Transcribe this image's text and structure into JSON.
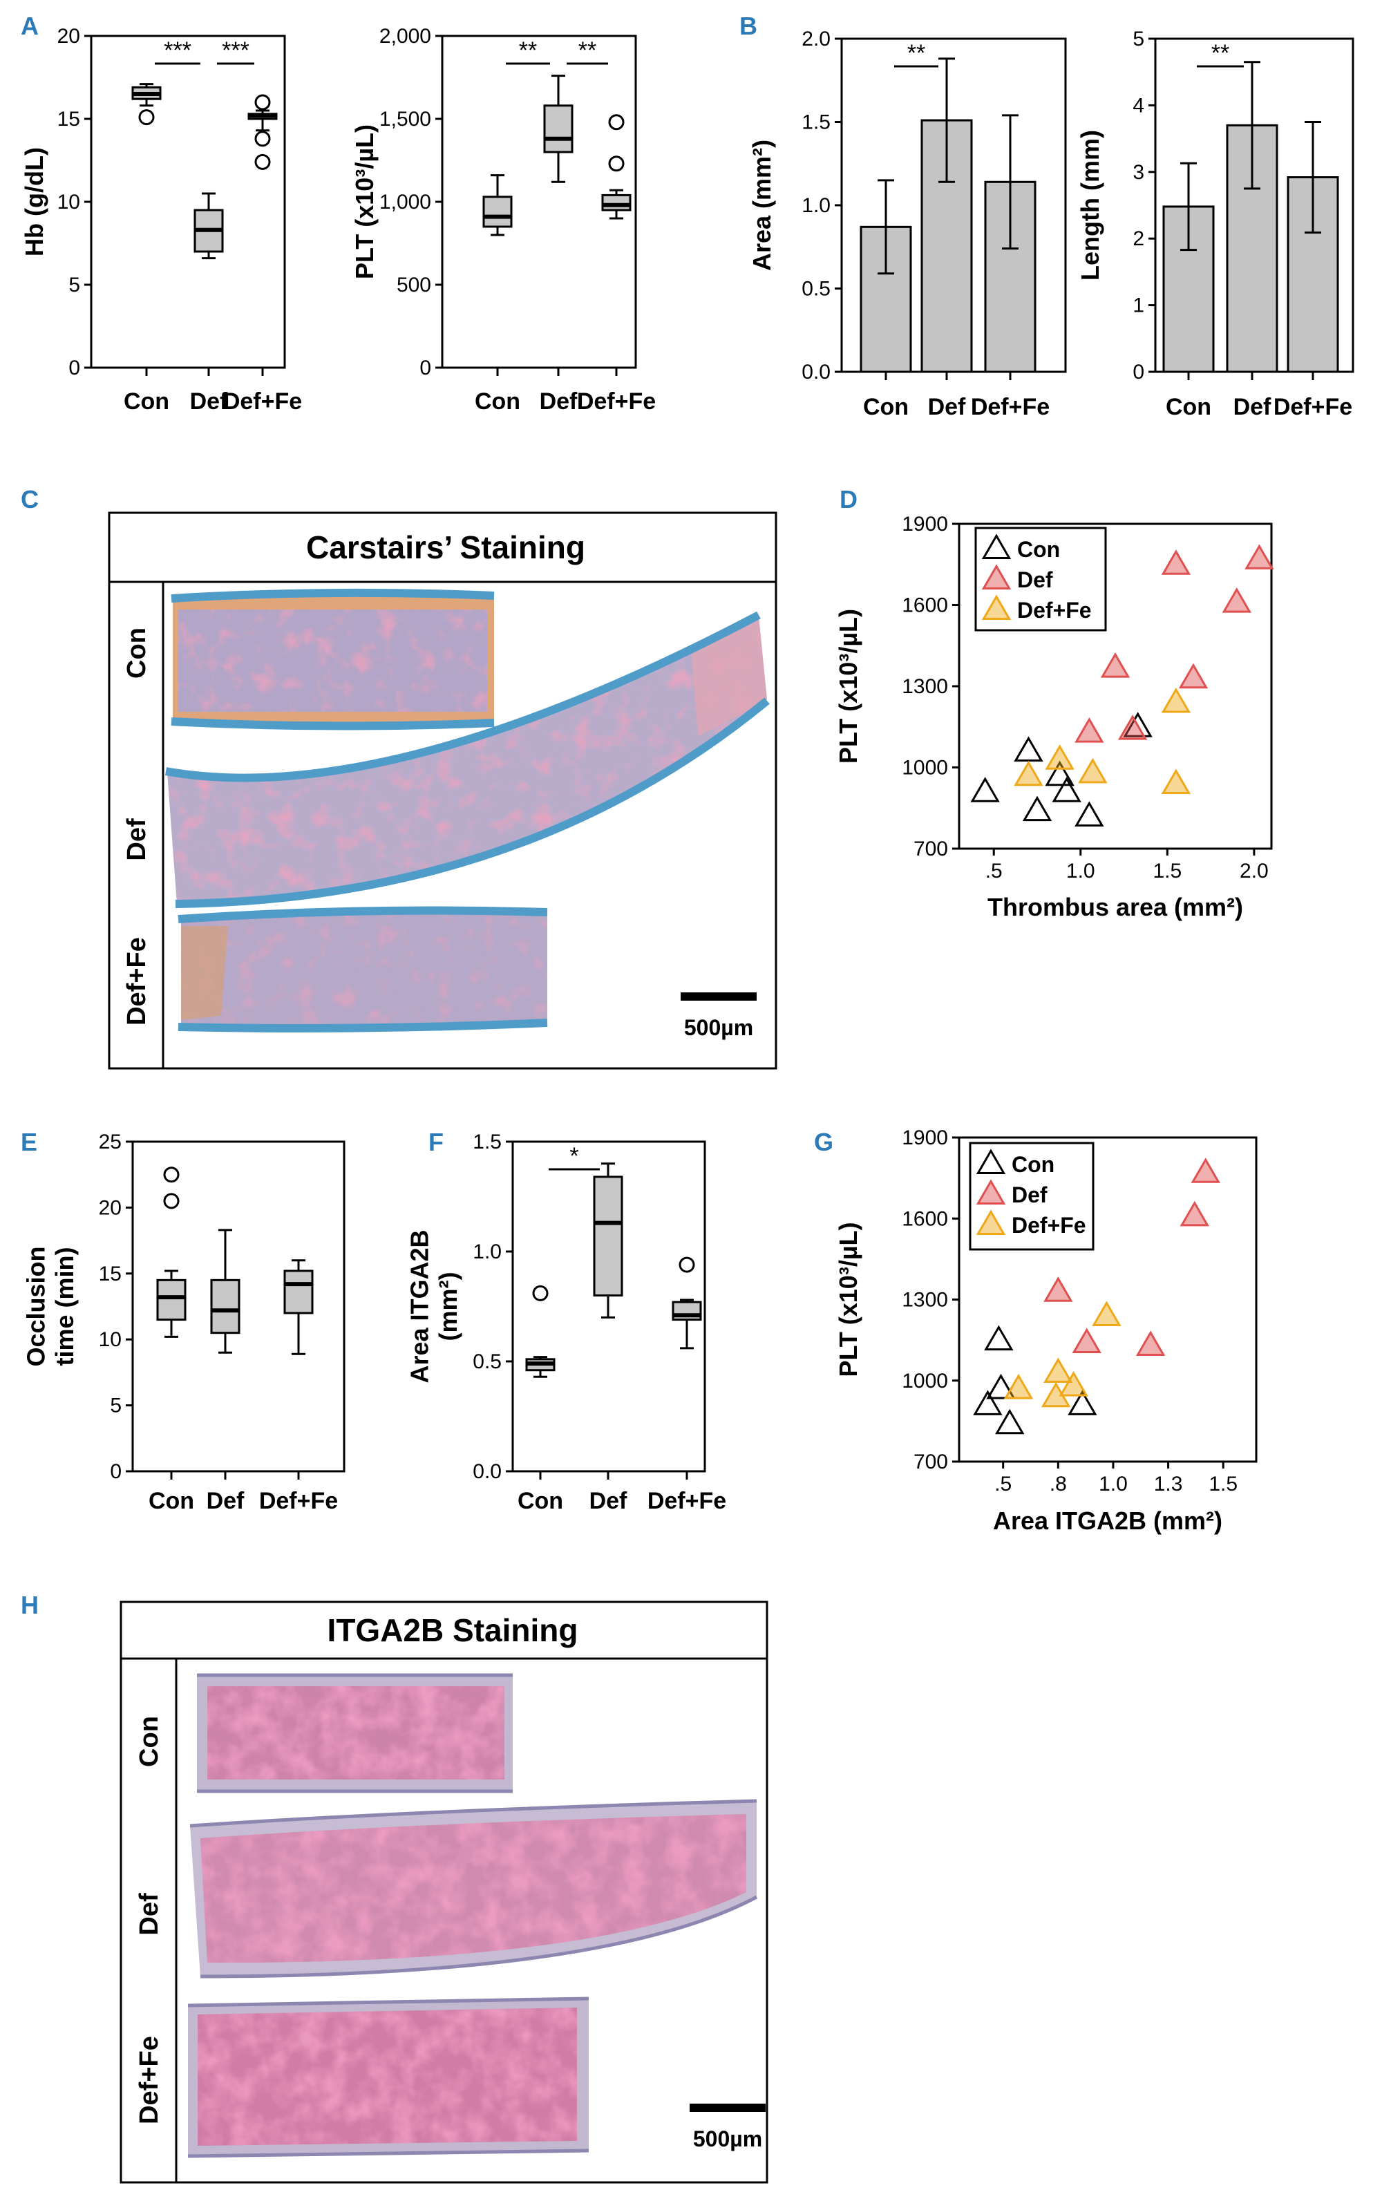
{
  "colors": {
    "panel_label": "#2b7bb9",
    "box_fill": "#c8c8c8",
    "bar_fill": "#c4c4c4",
    "con": "#000000",
    "def": "#e05050",
    "def_fe": "#f0a818",
    "carstairs_blue": "#4f9cc9",
    "carstairs_tissue": "#b7a9c9",
    "carstairs_red": "#d45e84",
    "itga_pink": "#d9578c",
    "itga_bg": "#c2b8d0"
  },
  "panel_labels": [
    "A",
    "B",
    "C",
    "D",
    "E",
    "F",
    "G",
    "H"
  ],
  "chart_data": [
    {
      "id": "A1",
      "type": "box",
      "ylabel": "Hb (g/dL)",
      "categories": [
        "Con",
        "Def",
        "Def+Fe"
      ],
      "yticks": [
        "0",
        "5",
        "10",
        "15",
        "20"
      ],
      "ylim": [
        0,
        20
      ],
      "boxes": [
        {
          "min": 15.8,
          "q1": 16.2,
          "median": 16.5,
          "q3": 16.9,
          "max": 17.1,
          "outliers": [
            15.1
          ]
        },
        {
          "min": 6.6,
          "q1": 7.0,
          "median": 8.3,
          "q3": 9.5,
          "max": 10.5,
          "outliers": []
        },
        {
          "min": 14.3,
          "q1": 15.0,
          "median": 15.2,
          "q3": 15.3,
          "max": 15.5,
          "outliers": [
            16.0,
            13.8,
            12.4
          ]
        }
      ],
      "brackets": [
        {
          "from": 0,
          "to": 1,
          "label": "***"
        },
        {
          "from": 1,
          "to": 2,
          "label": "***"
        }
      ]
    },
    {
      "id": "A2",
      "type": "box",
      "ylabel": "PLT (x10³/µL)",
      "categories": [
        "Con",
        "Def",
        "Def+Fe"
      ],
      "yticks": [
        "0",
        "500",
        "1,000",
        "1,500",
        "2,000"
      ],
      "ylim": [
        0,
        2000
      ],
      "boxes": [
        {
          "min": 800,
          "q1": 850,
          "median": 910,
          "q3": 1030,
          "max": 1160,
          "outliers": []
        },
        {
          "min": 1120,
          "q1": 1300,
          "median": 1380,
          "q3": 1580,
          "max": 1760,
          "outliers": []
        },
        {
          "min": 900,
          "q1": 950,
          "median": 980,
          "q3": 1040,
          "max": 1070,
          "outliers": [
            1480,
            1230
          ]
        }
      ],
      "brackets": [
        {
          "from": 0,
          "to": 1,
          "label": "**"
        },
        {
          "from": 1,
          "to": 2,
          "label": "**"
        }
      ]
    },
    {
      "id": "B1",
      "type": "bar",
      "ylabel": "Area (mm²)",
      "categories": [
        "Con",
        "Def",
        "Def+Fe"
      ],
      "yticks": [
        "0.0",
        "0.5",
        "1.0",
        "1.5",
        "2.0"
      ],
      "ylim": [
        0,
        2.0
      ],
      "values": [
        0.87,
        1.51,
        1.14
      ],
      "errors": [
        0.28,
        0.37,
        0.4
      ],
      "brackets": [
        {
          "from": 0,
          "to": 1,
          "label": "**"
        }
      ]
    },
    {
      "id": "B2",
      "type": "bar",
      "ylabel": "Length (mm)",
      "categories": [
        "Con",
        "Def",
        "Def+Fe"
      ],
      "yticks": [
        "0",
        "1",
        "2",
        "3",
        "4",
        "5"
      ],
      "ylim": [
        0,
        5
      ],
      "values": [
        2.48,
        3.7,
        2.92
      ],
      "errors": [
        0.65,
        0.95,
        0.83
      ],
      "brackets": [
        {
          "from": 0,
          "to": 1,
          "label": "**"
        }
      ]
    },
    {
      "id": "D",
      "type": "scatter",
      "xlabel": "Thrombus area (mm²)",
      "ylabel": "PLT (x10³/µL)",
      "xticks": [
        ".5",
        "1.0",
        "1.5",
        "2.0"
      ],
      "xtick_values": [
        0.5,
        1.0,
        1.5,
        2.0
      ],
      "xlim": [
        0.3,
        2.1
      ],
      "yticks": [
        "700",
        "1000",
        "1300",
        "1600",
        "1900"
      ],
      "ylim": [
        700,
        1900
      ],
      "legend": [
        "Con",
        "Def",
        "Def+Fe"
      ],
      "series": [
        {
          "name": "Con",
          "x": [
            0.45,
            0.75,
            0.7,
            0.88,
            0.92,
            1.05,
            1.33
          ],
          "y": [
            910,
            840,
            1060,
            970,
            910,
            820,
            1150
          ]
        },
        {
          "name": "Def",
          "x": [
            1.55,
            2.03,
            1.9,
            1.2,
            1.65,
            1.05,
            1.3
          ],
          "y": [
            1750,
            1770,
            1610,
            1370,
            1330,
            1130,
            1140
          ]
        },
        {
          "name": "Def+Fe",
          "x": [
            0.7,
            0.88,
            1.07,
            1.55,
            1.55
          ],
          "y": [
            970,
            1030,
            980,
            1240,
            940
          ]
        }
      ]
    },
    {
      "id": "E",
      "type": "box",
      "ylabel": "Occlusion time (min)",
      "ylabel_lines": [
        "Occlusion",
        "time (min)"
      ],
      "categories": [
        "Con",
        "Def",
        "Def+Fe"
      ],
      "yticks": [
        "0",
        "5",
        "10",
        "15",
        "20",
        "25"
      ],
      "ylim": [
        0,
        25
      ],
      "boxes": [
        {
          "min": 10.2,
          "q1": 11.5,
          "median": 13.2,
          "q3": 14.5,
          "max": 15.2,
          "outliers": [
            22.5,
            20.5
          ]
        },
        {
          "min": 9.0,
          "q1": 10.5,
          "median": 12.2,
          "q3": 14.5,
          "max": 18.3,
          "outliers": []
        },
        {
          "min": 8.9,
          "q1": 12.0,
          "median": 14.2,
          "q3": 15.2,
          "max": 16.0,
          "outliers": []
        }
      ],
      "brackets": []
    },
    {
      "id": "F",
      "type": "box",
      "ylabel": "Area ITGA2B (mm²)",
      "ylabel_lines": [
        "Area ITGA2B",
        "(mm²)"
      ],
      "categories": [
        "Con",
        "Def",
        "Def+Fe"
      ],
      "yticks": [
        "0.0",
        "0.5",
        "1.0",
        "1.5"
      ],
      "ylim": [
        0,
        1.5
      ],
      "boxes": [
        {
          "min": 0.43,
          "q1": 0.46,
          "median": 0.49,
          "q3": 0.51,
          "max": 0.52,
          "outliers": [
            0.81
          ]
        },
        {
          "min": 0.7,
          "q1": 0.8,
          "median": 1.13,
          "q3": 1.34,
          "max": 1.4,
          "outliers": []
        },
        {
          "min": 0.56,
          "q1": 0.69,
          "median": 0.71,
          "q3": 0.77,
          "max": 0.78,
          "outliers": [
            0.94
          ]
        }
      ],
      "brackets": [
        {
          "from": 0,
          "to": 1,
          "label": "*"
        }
      ]
    },
    {
      "id": "G",
      "type": "scatter",
      "xlabel": "Area ITGA2B (mm²)",
      "ylabel": "PLT (x10³/µL)",
      "xticks": [
        ".5",
        ".8",
        "1.0",
        "1.3",
        "1.5"
      ],
      "xtick_values": [
        0.5,
        0.75,
        1.0,
        1.25,
        1.5
      ],
      "xlim": [
        0.3,
        1.65
      ],
      "yticks": [
        "700",
        "1000",
        "1300",
        "1600",
        "1900"
      ],
      "ylim": [
        700,
        1900
      ],
      "legend": [
        "Con",
        "Def",
        "Def+Fe"
      ],
      "series": [
        {
          "name": "Con",
          "x": [
            0.43,
            0.49,
            0.53,
            0.48,
            0.86
          ],
          "y": [
            910,
            970,
            840,
            1150,
            910
          ]
        },
        {
          "name": "Def",
          "x": [
            0.75,
            0.88,
            1.17,
            1.37,
            1.42
          ],
          "y": [
            1330,
            1140,
            1130,
            1610,
            1770
          ]
        },
        {
          "name": "Def+Fe",
          "x": [
            0.57,
            0.74,
            0.75,
            0.82,
            0.97
          ],
          "y": [
            970,
            940,
            1030,
            980,
            1240
          ]
        }
      ]
    }
  ],
  "panel_c": {
    "title": "Carstairs’ Staining",
    "rows": [
      "Con",
      "Def",
      "Def+Fe"
    ],
    "scale": "500µm"
  },
  "panel_h": {
    "title": "ITGA2B Staining",
    "rows": [
      "Con",
      "Def",
      "Def+Fe"
    ],
    "scale": "500µm"
  }
}
